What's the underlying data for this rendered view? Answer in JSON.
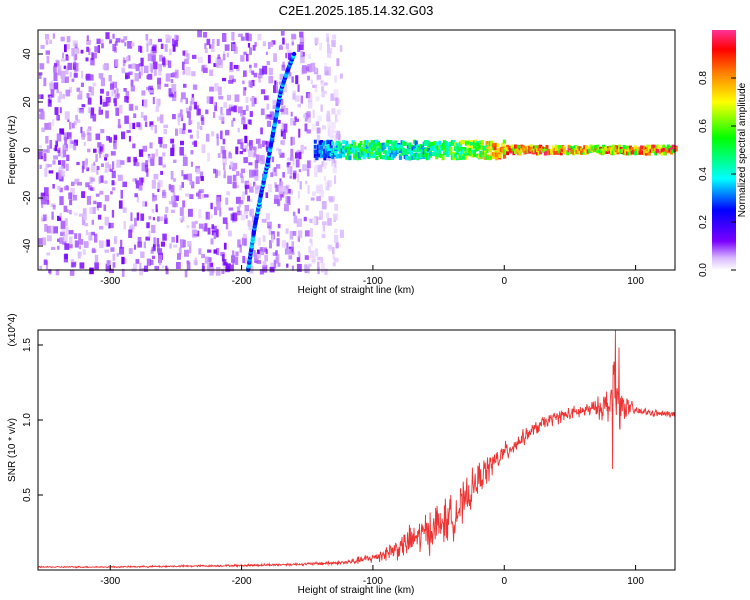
{
  "title": "C2E1.2025.185.14.32.G03",
  "chart_data": [
    {
      "type": "heatmap",
      "panel": "top",
      "xlabel": "Height of straight line (km)",
      "ylabel": "Frequency (Hz)",
      "xlim": [
        -355,
        130
      ],
      "ylim": [
        -50,
        50
      ],
      "xticks": [
        -300,
        -200,
        -100,
        0,
        100
      ],
      "yticks": [
        -40,
        -20,
        0,
        20,
        40
      ],
      "colorbar": {
        "label": "Normalized spectral amplitude",
        "range": [
          0,
          1
        ],
        "ticks": [
          0.0,
          0.2,
          0.4,
          0.6,
          0.8
        ],
        "colormap": "rainbow"
      },
      "features": {
        "noise_region_x": [
          -355,
          -135
        ],
        "diagonal_trace": {
          "x": [
            -195,
            -190,
            -185,
            -180,
            -175,
            -170,
            -165,
            -160
          ],
          "y": [
            -50,
            -32,
            -18,
            -5,
            10,
            25,
            33,
            40
          ]
        },
        "signal_band": {
          "x_start": -145,
          "x_end": 130,
          "frequency": 0,
          "amplitude_by_x": {
            "x": [
              -145,
              -120,
              -100,
              -80,
              -60,
              -40,
              -20,
              0,
              50,
              75,
              100,
              130
            ],
            "value": [
              0.3,
              0.55,
              0.6,
              0.5,
              0.55,
              0.65,
              0.75,
              0.95,
              0.95,
              0.9,
              0.95,
              0.95
            ]
          }
        }
      },
      "grid": false
    },
    {
      "type": "line",
      "panel": "bottom",
      "xlabel": "Height of straight line (km)",
      "ylabel": "SNR (10 * v/v)",
      "y_multiplier": "(x10^4)",
      "xlim": [
        -355,
        130
      ],
      "ylim": [
        0,
        1.6
      ],
      "xticks": [
        -300,
        -200,
        -100,
        0,
        100
      ],
      "yticks": [
        0.5,
        1.0,
        1.5
      ],
      "series": [
        {
          "color": "#ee3333",
          "x": [
            -355,
            -300,
            -250,
            -200,
            -150,
            -120,
            -100,
            -80,
            -60,
            -50,
            -40,
            -30,
            -20,
            -10,
            0,
            10,
            20,
            30,
            40,
            50,
            60,
            70,
            80,
            85,
            90,
            100,
            110,
            120,
            130
          ],
          "y": [
            0.02,
            0.02,
            0.025,
            0.03,
            0.04,
            0.05,
            0.08,
            0.15,
            0.25,
            0.3,
            0.35,
            0.45,
            0.6,
            0.7,
            0.78,
            0.85,
            0.92,
            0.98,
            1.02,
            1.04,
            1.06,
            1.08,
            1.1,
            1.15,
            1.1,
            1.06,
            1.05,
            1.04,
            1.04
          ],
          "noise": [
            0.004,
            0.004,
            0.005,
            0.006,
            0.008,
            0.015,
            0.03,
            0.07,
            0.12,
            0.14,
            0.13,
            0.12,
            0.1,
            0.08,
            0.06,
            0.05,
            0.04,
            0.04,
            0.04,
            0.04,
            0.04,
            0.05,
            0.12,
            0.3,
            0.08,
            0.03,
            0.02,
            0.02,
            0.02
          ]
        }
      ],
      "grid": false
    }
  ]
}
